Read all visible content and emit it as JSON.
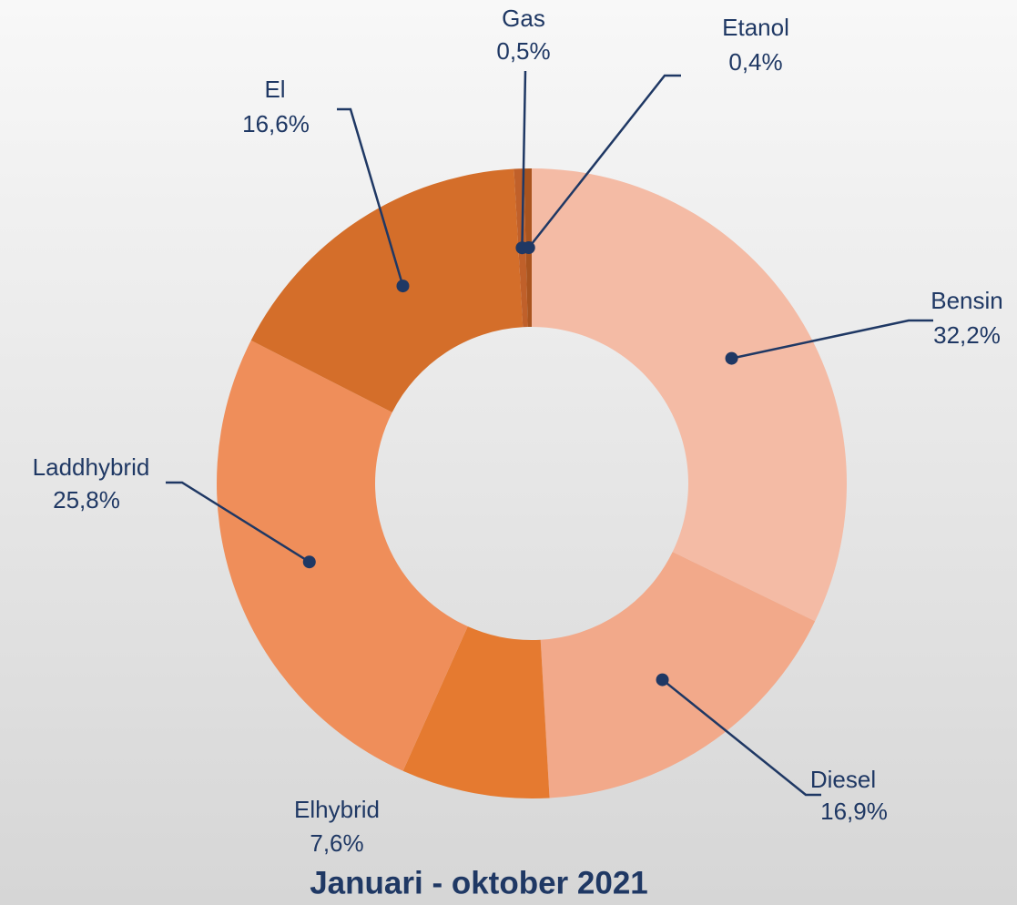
{
  "chart_data": {
    "type": "donut",
    "title": "Januari - oktober 2021",
    "categories": [
      "Bensin",
      "Diesel",
      "Elhybrid",
      "Laddhybrid",
      "El",
      "Gas",
      "Etanol"
    ],
    "values": [
      32.2,
      16.9,
      7.6,
      25.8,
      16.6,
      0.5,
      0.4
    ],
    "value_labels": [
      "32,2%",
      "16,9%",
      "7,6%",
      "25,8%",
      "16,6%",
      "0,5%",
      "0,4%"
    ],
    "colors": [
      "#f4bba5",
      "#f2a98a",
      "#e57a30",
      "#ef8e5a",
      "#d46e2a",
      "#c0602a",
      "#a9541f"
    ]
  }
}
